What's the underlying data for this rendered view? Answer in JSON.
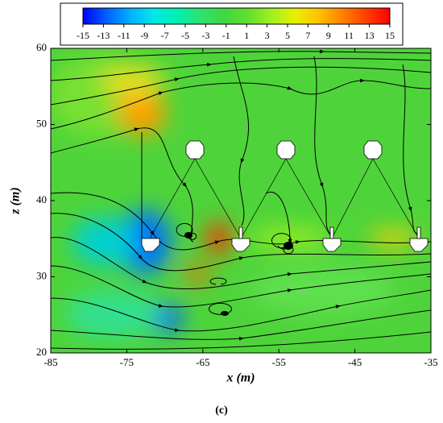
{
  "chart_data": {
    "type": "contour",
    "xlabel": "x (m)",
    "ylabel": "z (m)",
    "caption": "(c)",
    "xlim": [
      -85,
      -35
    ],
    "xticks": [
      -85,
      -75,
      -65,
      -55,
      -45,
      -35
    ],
    "ylim": [
      20,
      60
    ],
    "yticks": [
      20,
      30,
      40,
      50,
      60
    ],
    "colorbar": {
      "clim": [
        -15,
        15
      ],
      "ticks": [
        -15,
        -13,
        -11,
        -9,
        -7,
        -5,
        -3,
        -1,
        1,
        3,
        5,
        7,
        9,
        11,
        13,
        15
      ],
      "colors": [
        "#0000ff",
        "#0060ff",
        "#00b0ff",
        "#00e8e8",
        "#00f0b0",
        "#30e070",
        "#40d840",
        "#60e030",
        "#a0f020",
        "#e8f000",
        "#ffc000",
        "#ff8000",
        "#ff4000",
        "#ff0000"
      ]
    }
  }
}
